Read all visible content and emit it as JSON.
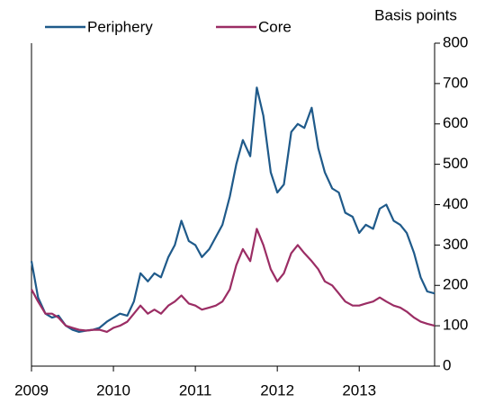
{
  "chart_data": {
    "type": "line",
    "y_label": "Basis points",
    "x": [
      2009.0,
      2009.08,
      2009.17,
      2009.25,
      2009.33,
      2009.42,
      2009.5,
      2009.58,
      2009.67,
      2009.75,
      2009.83,
      2009.92,
      2010.0,
      2010.08,
      2010.17,
      2010.25,
      2010.33,
      2010.42,
      2010.5,
      2010.58,
      2010.67,
      2010.75,
      2010.83,
      2010.92,
      2011.0,
      2011.08,
      2011.17,
      2011.25,
      2011.33,
      2011.42,
      2011.5,
      2011.58,
      2011.67,
      2011.75,
      2011.83,
      2011.92,
      2012.0,
      2012.08,
      2012.17,
      2012.25,
      2012.33,
      2012.42,
      2012.5,
      2012.58,
      2012.67,
      2012.75,
      2012.83,
      2012.92,
      2013.0,
      2013.08,
      2013.17,
      2013.25,
      2013.33,
      2013.42,
      2013.5,
      2013.58,
      2013.67,
      2013.75,
      2013.83,
      2013.92
    ],
    "series": [
      {
        "name": "Periphery",
        "color": "#1f5a8a",
        "values": [
          260,
          170,
          130,
          120,
          125,
          100,
          90,
          85,
          88,
          90,
          95,
          110,
          120,
          130,
          125,
          160,
          230,
          210,
          230,
          220,
          270,
          300,
          360,
          310,
          300,
          270,
          290,
          320,
          350,
          420,
          500,
          560,
          520,
          690,
          620,
          480,
          430,
          450,
          580,
          600,
          590,
          640,
          540,
          480,
          440,
          430,
          380,
          370,
          330,
          350,
          340,
          390,
          400,
          360,
          350,
          330,
          280,
          220,
          185,
          180
        ]
      },
      {
        "name": "Core",
        "color": "#9b2d64",
        "values": [
          190,
          160,
          130,
          130,
          120,
          100,
          95,
          90,
          88,
          90,
          90,
          85,
          95,
          100,
          110,
          130,
          150,
          130,
          140,
          130,
          150,
          160,
          175,
          155,
          150,
          140,
          145,
          150,
          160,
          190,
          250,
          290,
          260,
          340,
          300,
          240,
          210,
          230,
          280,
          300,
          280,
          260,
          240,
          210,
          200,
          180,
          160,
          150,
          150,
          155,
          160,
          170,
          160,
          150,
          145,
          135,
          120,
          110,
          105,
          100
        ]
      }
    ],
    "xlim": [
      2009,
      2013.92
    ],
    "xticks": [
      2009,
      2010,
      2011,
      2012,
      2013
    ],
    "ylim": [
      0,
      800
    ],
    "yticks": [
      0,
      100,
      200,
      300,
      400,
      500,
      600,
      700,
      800
    ],
    "y_axis_side": "right"
  }
}
